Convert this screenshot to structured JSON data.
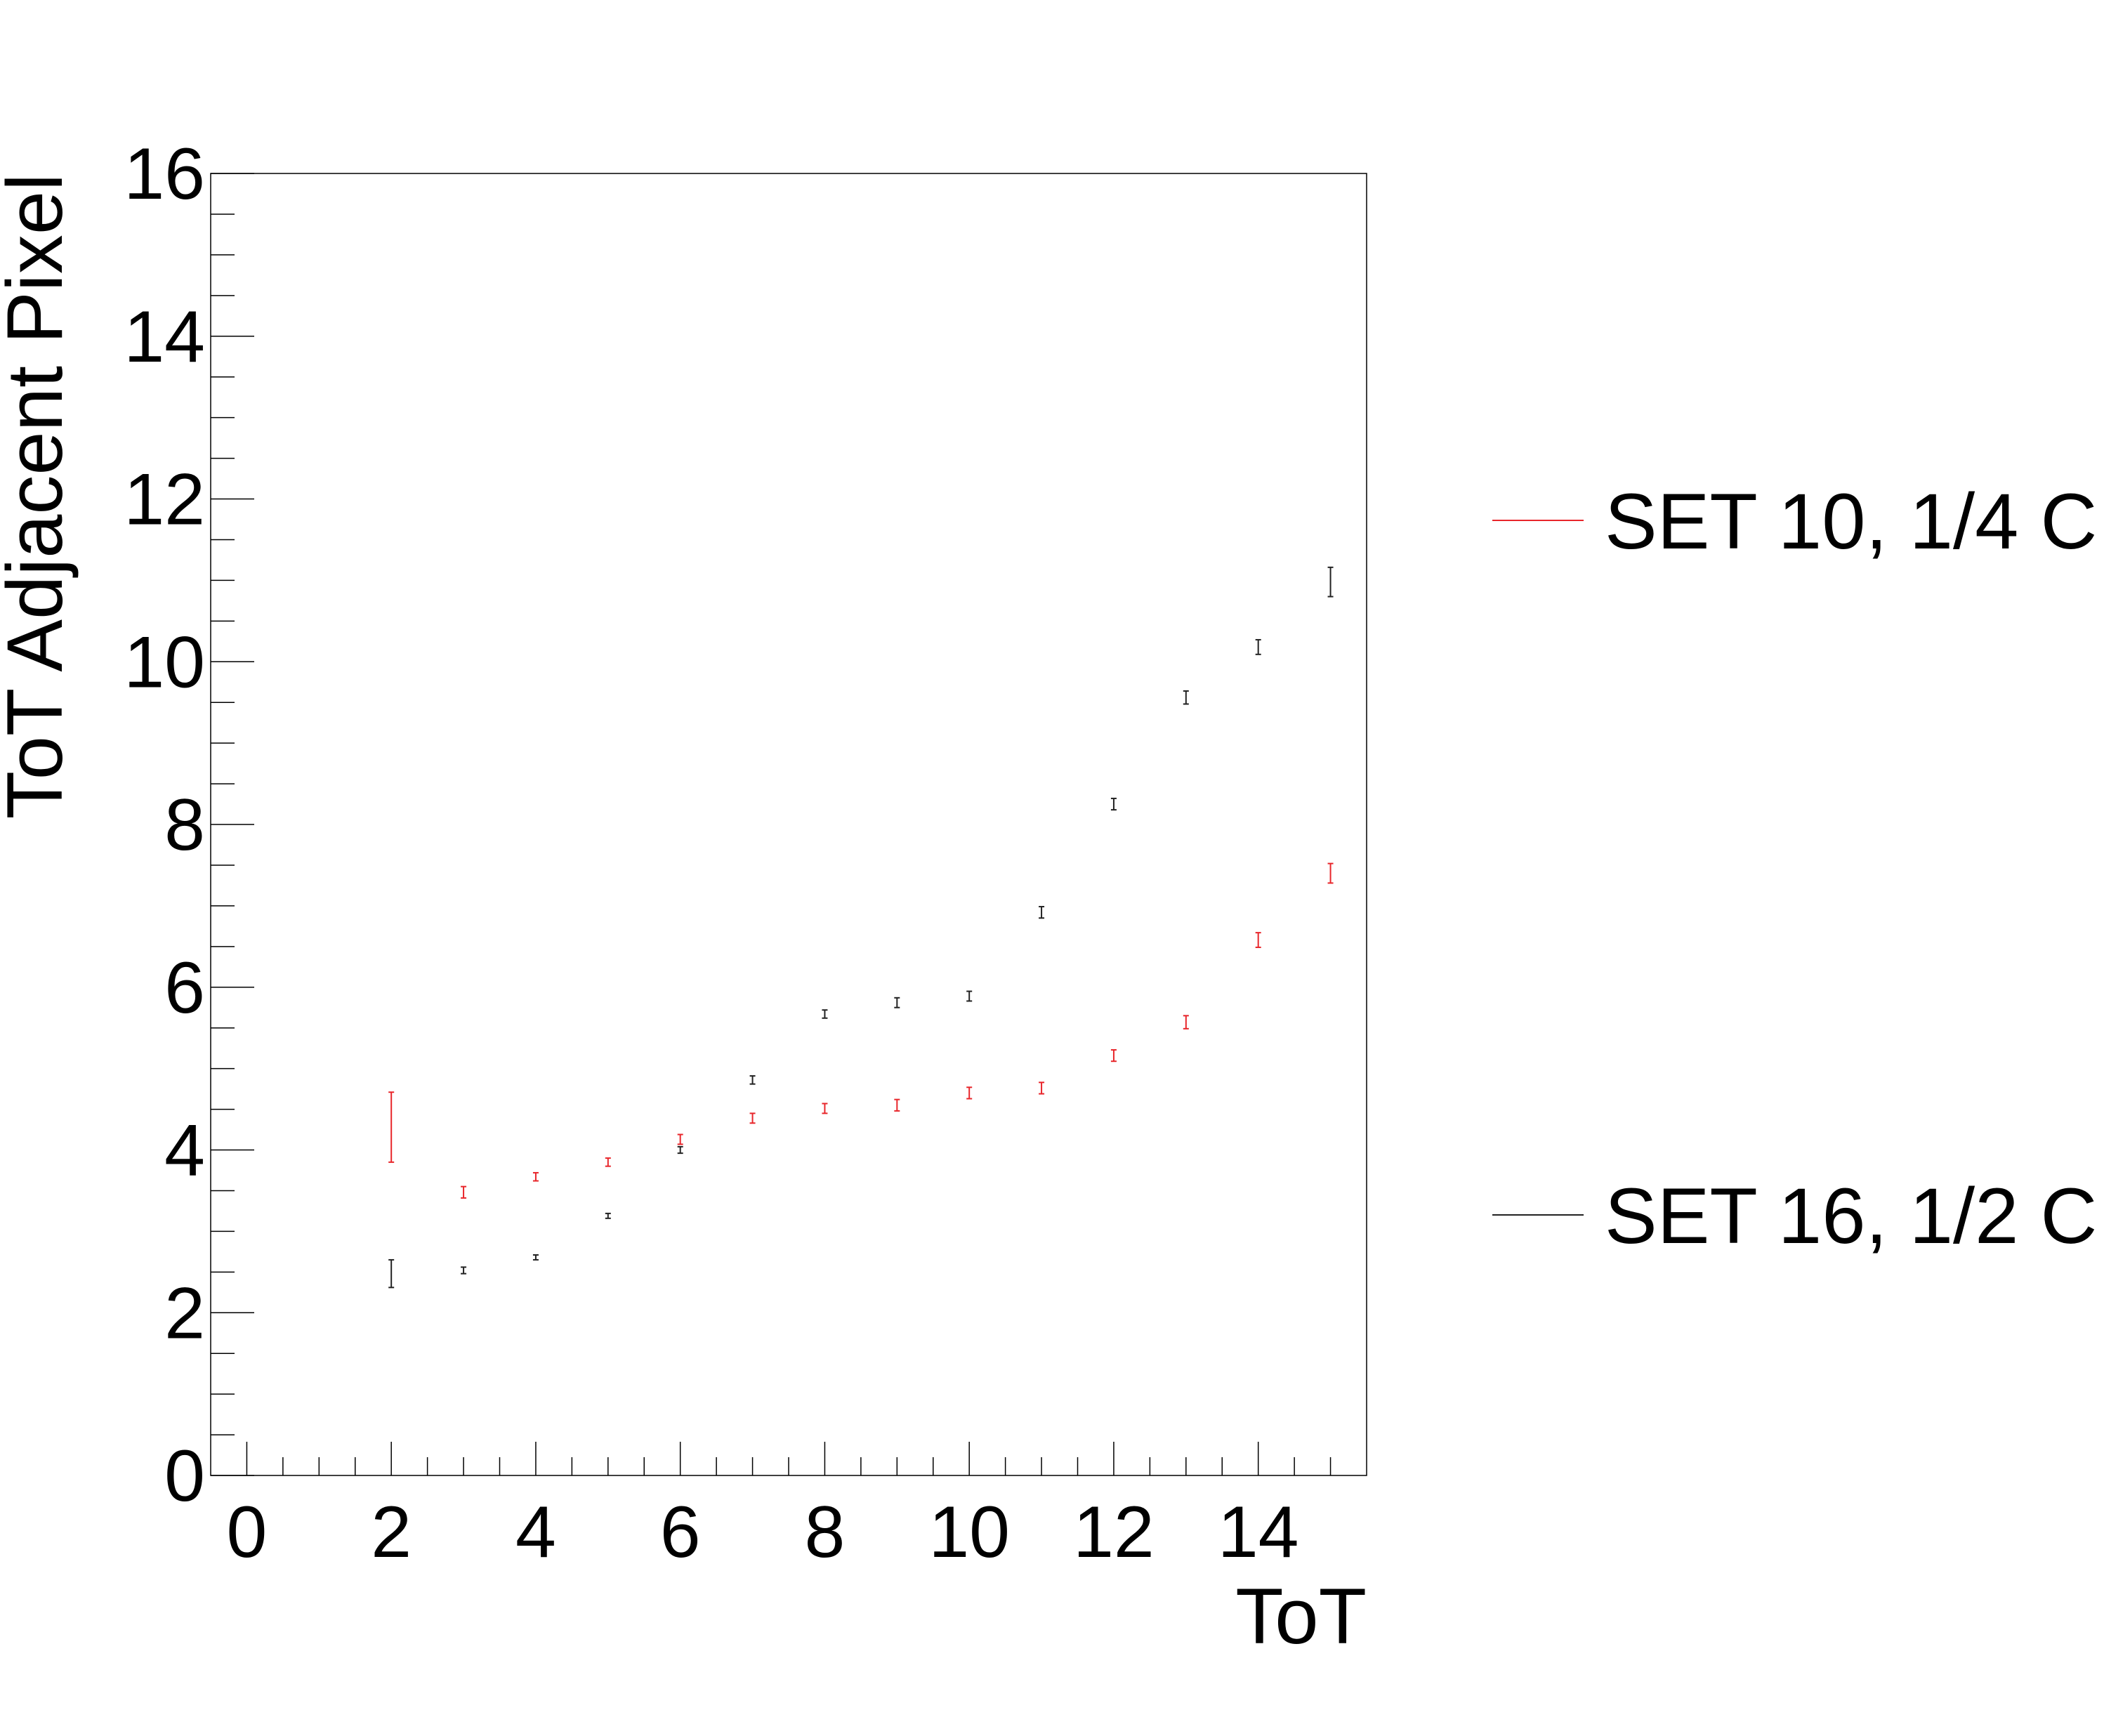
{
  "chart_data": {
    "type": "scatter",
    "title": "",
    "xlabel": "ToT",
    "ylabel": "ToT Adjacent Pixel",
    "xlim": [
      -0.5,
      15.5
    ],
    "ylim": [
      0,
      16
    ],
    "x_ticks": [
      0,
      2,
      4,
      6,
      8,
      10,
      12,
      14
    ],
    "y_ticks": [
      0,
      2,
      4,
      6,
      8,
      10,
      12,
      14,
      16
    ],
    "x_tick_labels": [
      "0",
      "2",
      "4",
      "6",
      "8",
      "10",
      "12",
      "14"
    ],
    "y_tick_labels": [
      "0",
      "2",
      "4",
      "6",
      "8",
      "10",
      "12",
      "14",
      "16"
    ],
    "grid": false,
    "legend_position": "right",
    "series": [
      {
        "name": "SET 10, 1/4 C",
        "color": "#e8262b",
        "x": [
          2,
          3,
          4,
          5,
          6,
          7,
          8,
          9,
          10,
          11,
          12,
          13,
          14,
          15
        ],
        "y": [
          4.28,
          3.48,
          3.67,
          3.85,
          4.13,
          4.39,
          4.51,
          4.55,
          4.7,
          4.76,
          5.16,
          5.57,
          6.58,
          7.4
        ],
        "err": [
          0.43,
          0.07,
          0.05,
          0.05,
          0.06,
          0.06,
          0.06,
          0.07,
          0.07,
          0.07,
          0.07,
          0.08,
          0.09,
          0.12
        ]
      },
      {
        "name": "SET 16, 1/2 C",
        "color": "#222222",
        "x": [
          2,
          3,
          4,
          5,
          6,
          7,
          8,
          9,
          10,
          11,
          12,
          13,
          14,
          15
        ],
        "y": [
          2.48,
          2.52,
          2.68,
          3.19,
          4.0,
          4.86,
          5.67,
          5.81,
          5.89,
          6.92,
          8.25,
          9.56,
          10.18,
          10.98
        ],
        "err": [
          0.17,
          0.04,
          0.03,
          0.03,
          0.04,
          0.05,
          0.05,
          0.06,
          0.06,
          0.07,
          0.07,
          0.08,
          0.09,
          0.18
        ]
      }
    ]
  }
}
